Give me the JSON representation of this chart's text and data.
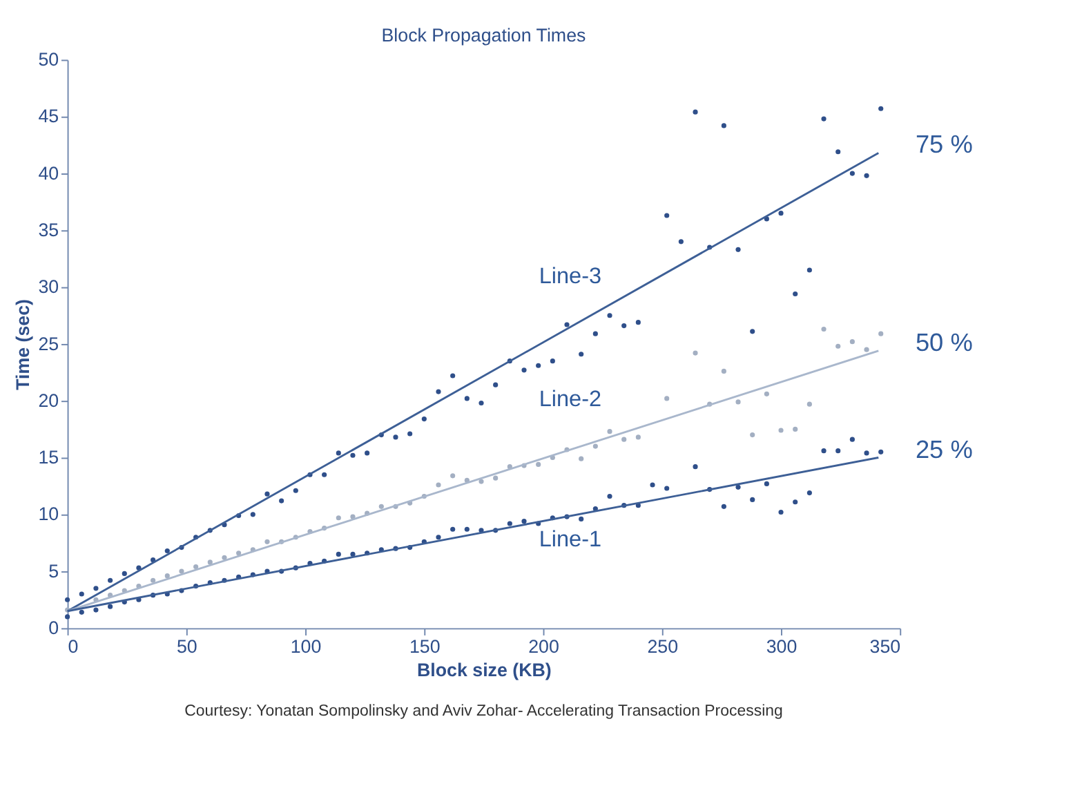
{
  "chart_data": {
    "type": "scatter",
    "title": "Block Propagation Times",
    "xlabel": "Block size (KB)",
    "ylabel": "Time (sec)",
    "xlim": [
      0,
      350
    ],
    "xticks": [
      0,
      50,
      100,
      150,
      200,
      250,
      300,
      350
    ],
    "ylim": [
      0,
      50
    ],
    "yticks": [
      0,
      5,
      10,
      15,
      20,
      25,
      30,
      35,
      40,
      45,
      50
    ],
    "grid": false,
    "marker": "circle",
    "series": [
      {
        "color": "#2f4f8a",
        "x": [
          0,
          6,
          12,
          18,
          24,
          30,
          36,
          42,
          48,
          54,
          60,
          66,
          72,
          78,
          84,
          90,
          96,
          102,
          108,
          114,
          120,
          126,
          132,
          138,
          144,
          150,
          156,
          162,
          168,
          174,
          180,
          186,
          192,
          198,
          204,
          210,
          216,
          222,
          228,
          234,
          240,
          252,
          258,
          264,
          270,
          276,
          282,
          288,
          294,
          300,
          306,
          312,
          318,
          324,
          330,
          336,
          342
        ],
        "values": [
          2.5,
          3.0,
          3.5,
          4.2,
          4.8,
          5.3,
          6.0,
          6.8,
          7.1,
          8.0,
          8.6,
          9.1,
          9.9,
          10.0,
          11.8,
          11.2,
          12.1,
          13.5,
          13.5,
          15.4,
          15.2,
          15.4,
          17.0,
          16.8,
          17.1,
          18.4,
          20.8,
          22.2,
          20.2,
          19.8,
          21.4,
          23.5,
          22.7,
          23.1,
          23.5,
          26.7,
          24.1,
          25.9,
          27.5,
          26.6,
          26.9,
          36.3,
          34.0,
          45.4,
          33.5,
          44.2,
          33.3,
          26.1,
          36.0,
          36.5,
          29.4,
          31.5,
          44.8,
          41.9,
          40.0,
          39.8,
          45.7
        ]
      },
      {
        "color": "#a3afc2",
        "x": [
          0,
          6,
          12,
          18,
          24,
          30,
          36,
          42,
          48,
          54,
          60,
          66,
          72,
          78,
          84,
          90,
          96,
          102,
          108,
          114,
          120,
          126,
          132,
          138,
          144,
          150,
          156,
          162,
          168,
          174,
          180,
          186,
          192,
          198,
          204,
          210,
          216,
          222,
          228,
          234,
          240,
          252,
          264,
          270,
          276,
          282,
          288,
          294,
          300,
          306,
          312,
          318,
          324,
          330,
          336,
          342
        ],
        "values": [
          1.6,
          null,
          2.5,
          2.9,
          3.3,
          3.7,
          4.2,
          4.6,
          5.0,
          5.4,
          5.8,
          6.2,
          6.6,
          6.9,
          7.6,
          7.6,
          8.0,
          8.5,
          8.8,
          9.7,
          9.8,
          10.1,
          10.7,
          10.7,
          11.0,
          11.6,
          12.6,
          13.4,
          13.0,
          12.9,
          13.2,
          14.2,
          14.3,
          14.4,
          15.0,
          15.7,
          14.9,
          16.0,
          17.3,
          16.6,
          16.8,
          20.2,
          24.2,
          19.7,
          22.6,
          19.9,
          17.0,
          20.6,
          17.4,
          17.5,
          19.7,
          26.3,
          24.8,
          25.2,
          24.5,
          25.9
        ]
      },
      {
        "color": "#2f4f8a",
        "x": [
          0,
          6,
          12,
          18,
          24,
          30,
          36,
          42,
          48,
          54,
          60,
          66,
          72,
          78,
          84,
          90,
          96,
          102,
          108,
          114,
          120,
          126,
          132,
          138,
          144,
          150,
          156,
          162,
          168,
          174,
          180,
          186,
          192,
          198,
          204,
          210,
          216,
          222,
          228,
          234,
          240,
          246,
          252,
          264,
          270,
          276,
          282,
          288,
          294,
          300,
          306,
          312,
          318,
          324,
          330,
          336,
          342
        ],
        "values": [
          1.0,
          1.4,
          1.6,
          1.9,
          2.3,
          2.5,
          2.9,
          3.0,
          3.3,
          3.7,
          4.0,
          4.2,
          4.5,
          4.7,
          5.0,
          5.0,
          5.3,
          5.7,
          5.9,
          6.5,
          6.5,
          6.6,
          6.9,
          7.0,
          7.1,
          7.6,
          8.0,
          8.7,
          8.7,
          8.6,
          8.6,
          9.2,
          9.4,
          9.2,
          9.7,
          9.8,
          9.6,
          10.5,
          11.6,
          10.8,
          10.8,
          12.6,
          12.3,
          14.2,
          12.2,
          10.7,
          12.4,
          11.3,
          12.7,
          10.2,
          11.1,
          11.9,
          15.6,
          15.6,
          16.6,
          15.4,
          15.5
        ]
      },
      {
        "type": "line",
        "name": "75 %",
        "marker": "none",
        "line_style": "solid",
        "color": "#3d5f96",
        "x": [
          0,
          341
        ],
        "values": [
          1.5,
          41.8
        ]
      },
      {
        "type": "line",
        "name": "50 %",
        "marker": "none",
        "line_style": "solid",
        "color": "#a9b7cc",
        "x": [
          0,
          341
        ],
        "values": [
          1.5,
          24.4
        ]
      },
      {
        "type": "line",
        "name": "25 %",
        "marker": "none",
        "line_style": "solid",
        "color": "#3d5f96",
        "x": [
          0,
          341
        ],
        "values": [
          1.5,
          15.0
        ]
      }
    ],
    "annotations": [
      "Line-3",
      "Line-2",
      "Line-1",
      "Courtesy: Yonatan Sompolinsky and Aviv Zohar- Accelerating Transaction Processing"
    ]
  }
}
